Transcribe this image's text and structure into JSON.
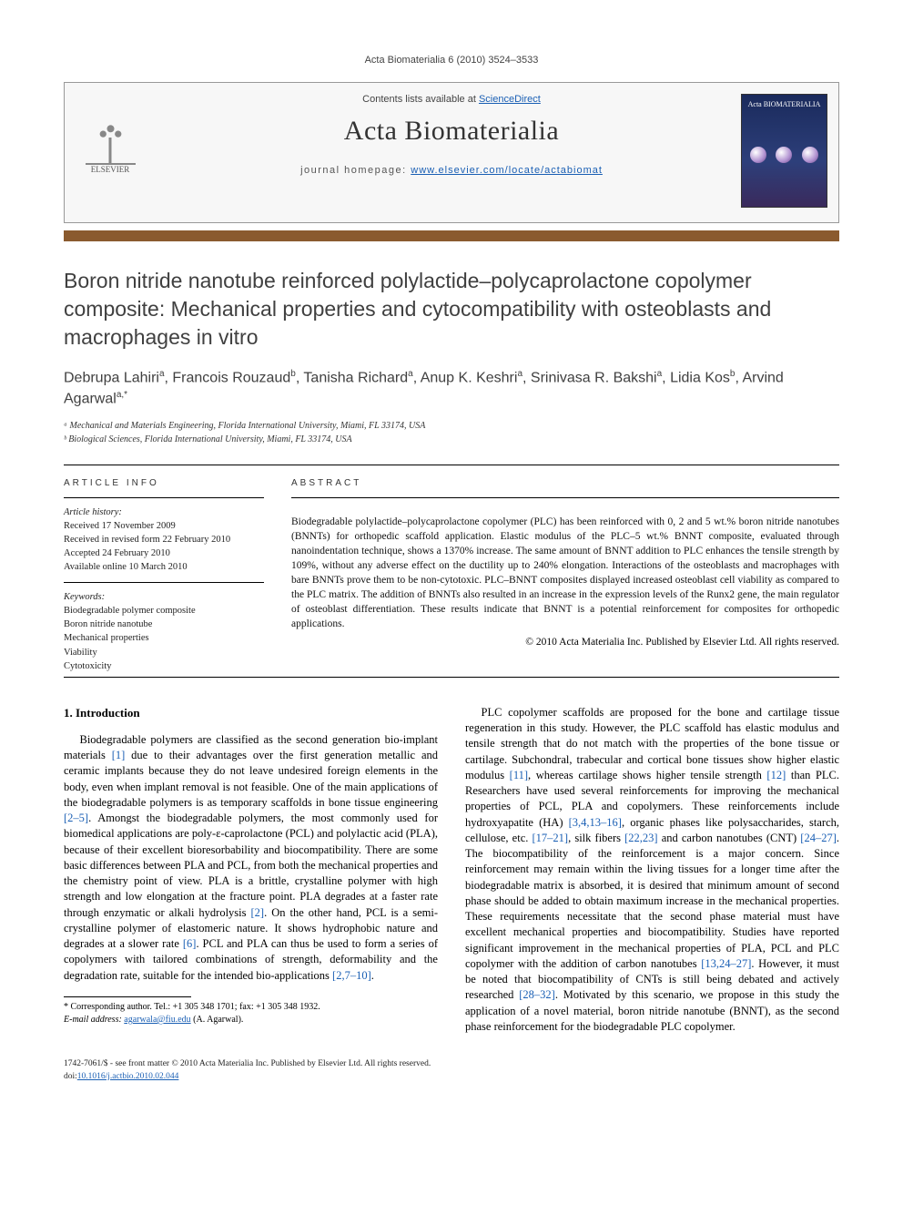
{
  "runningHead": "Acta Biomaterialia 6 (2010) 3524–3533",
  "header": {
    "elsevierLabel": "ELSEVIER",
    "contentsPrefix": "Contents lists available at ",
    "contentsLink": "ScienceDirect",
    "journalName": "Acta Biomaterialia",
    "homepagePrefix": "journal homepage: ",
    "homepageUrl": "www.elsevier.com/locate/actabiomat",
    "coverTitle": "Acta BIOMATERIALIA"
  },
  "title": "Boron nitride nanotube reinforced polylactide–polycaprolactone copolymer composite: Mechanical properties and cytocompatibility with osteoblasts and macrophages in vitro",
  "authorsHtml": "Debrupa Lahiri<sup>a</sup>, Francois Rouzaud<sup>b</sup>, Tanisha Richard<sup>a</sup>, Anup K. Keshri<sup>a</sup>, Srinivasa R. Bakshi<sup>a</sup>, Lidia Kos<sup>b</sup>, Arvind Agarwal<sup>a,*</sup>",
  "affiliations": [
    "ᵃ Mechanical and Materials Engineering, Florida International University, Miami, FL 33174, USA",
    "ᵇ Biological Sciences, Florida International University, Miami, FL 33174, USA"
  ],
  "articleInfoLabel": "ARTICLE INFO",
  "abstractLabel": "ABSTRACT",
  "history": {
    "label": "Article history:",
    "received": "Received 17 November 2009",
    "revised": "Received in revised form 22 February 2010",
    "accepted": "Accepted 24 February 2010",
    "online": "Available online 10 March 2010"
  },
  "keywords": {
    "label": "Keywords:",
    "items": [
      "Biodegradable polymer composite",
      "Boron nitride nanotube",
      "Mechanical properties",
      "Viability",
      "Cytotoxicity"
    ]
  },
  "abstract": "Biodegradable polylactide–polycaprolactone copolymer (PLC) has been reinforced with 0, 2 and 5 wt.% boron nitride nanotubes (BNNTs) for orthopedic scaffold application. Elastic modulus of the PLC–5 wt.% BNNT composite, evaluated through nanoindentation technique, shows a 1370% increase. The same amount of BNNT addition to PLC enhances the tensile strength by 109%, without any adverse effect on the ductility up to 240% elongation. Interactions of the osteoblasts and macrophages with bare BNNTs prove them to be non-cytotoxic. PLC–BNNT composites displayed increased osteoblast cell viability as compared to the PLC matrix. The addition of BNNTs also resulted in an increase in the expression levels of the Runx2 gene, the main regulator of osteoblast differentiation. These results indicate that BNNT is a potential reinforcement for composites for orthopedic applications.",
  "copyright": "© 2010 Acta Materialia Inc. Published by Elsevier Ltd. All rights reserved.",
  "introHeading": "1. Introduction",
  "introPara1": "Biodegradable polymers are classified as the second generation bio-implant materials [1] due to their advantages over the first generation metallic and ceramic implants because they do not leave undesired foreign elements in the body, even when implant removal is not feasible. One of the main applications of the biodegradable polymers is as temporary scaffolds in bone tissue engineering [2–5]. Amongst the biodegradable polymers, the most commonly used for biomedical applications are poly-ε-caprolactone (PCL) and polylactic acid (PLA), because of their excellent bioresorbability and biocompatibility. There are some basic differences between PLA and PCL, from both the mechanical properties and the chemistry point of view. PLA is a brittle, crystalline polymer with high strength and low elongation at the fracture point. PLA degrades at a faster rate through enzymatic or alkali hydrolysis [2]. On the other hand, PCL is a semi-crystalline polymer of elastomeric nature. It shows hydrophobic nature and degrades at a slower rate [6]. PCL and PLA can thus be used to form a series of copolymers with tailored combinations of strength, deformability and the degradation rate, suitable for the intended bio-applications [2,7–10].",
  "introPara2": "PLC copolymer scaffolds are proposed for the bone and cartilage tissue regeneration in this study. However, the PLC scaffold has elastic modulus and tensile strength that do not match with the properties of the bone tissue or cartilage. Subchondral, trabecular and cortical bone tissues show higher elastic modulus [11], whereas cartilage shows higher tensile strength [12] than PLC. Researchers have used several reinforcements for improving the mechanical properties of PCL, PLA and copolymers. These reinforcements include hydroxyapatite (HA) [3,4,13–16], organic phases like polysaccharides, starch, cellulose, etc. [17–21], silk fibers [22,23] and carbon nanotubes (CNT) [24–27]. The biocompatibility of the reinforcement is a major concern. Since reinforcement may remain within the living tissues for a longer time after the biodegradable matrix is absorbed, it is desired that minimum amount of second phase should be added to obtain maximum increase in the mechanical properties. These requirements necessitate that the second phase material must have excellent mechanical properties and biocompatibility. Studies have reported significant improvement in the mechanical properties of PLA, PCL and PLC copolymer with the addition of carbon nanotubes [13,24–27]. However, it must be noted that biocompatibility of CNTs is still being debated and actively researched [28–32]. Motivated by this scenario, we propose in this study the application of a novel material, boron nitride nanotube (BNNT), as the second phase reinforcement for the biodegradable PLC copolymer.",
  "corresponding": {
    "star": "* ",
    "line1": "Corresponding author. Tel.: +1 305 348 1701; fax: +1 305 348 1932.",
    "emailLabel": "E-mail address: ",
    "email": "agarwala@fiu.edu",
    "emailSuffix": " (A. Agarwal)."
  },
  "footer": {
    "line1": "1742-7061/$ - see front matter © 2010 Acta Materialia Inc. Published by Elsevier Ltd. All rights reserved.",
    "doiLabel": "doi:",
    "doi": "10.1016/j.actbio.2010.02.044"
  },
  "refColor": "#1a5fb4",
  "barColor": "#8a5a2e"
}
